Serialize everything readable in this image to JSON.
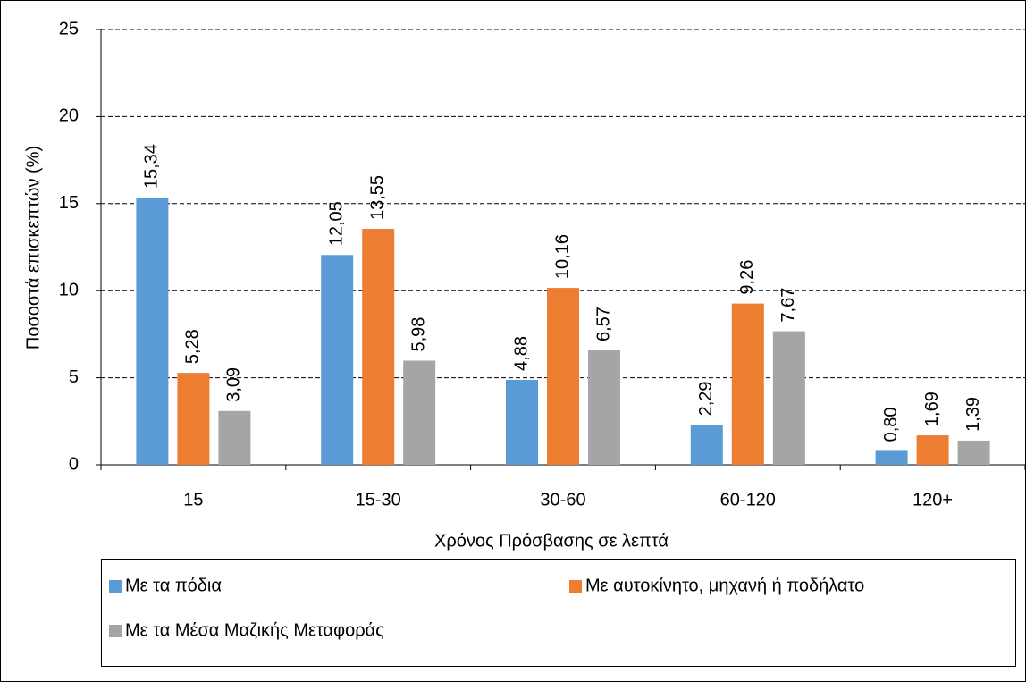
{
  "chart_data": {
    "type": "bar",
    "x_label": "Χρόνος Πρόσβασης σε λεπτά",
    "y_label": "Ποσοστά επισκεπτών (%)",
    "categories": [
      "15",
      "15-30",
      "30-60",
      "60-120",
      "120+"
    ],
    "series": [
      {
        "name": "Με τα πόδια",
        "color": "#5b9bd5",
        "values": [
          15.34,
          12.05,
          4.88,
          2.29,
          0.8
        ],
        "value_labels": [
          "15,34",
          "12,05",
          "4,88",
          "2,29",
          "0,80"
        ]
      },
      {
        "name": "Με αυτοκίνητο, μηχανή ή ποδήλατο",
        "color": "#ed7d31",
        "values": [
          5.28,
          13.55,
          10.16,
          9.26,
          1.69
        ],
        "value_labels": [
          "5,28",
          "13,55",
          "10,16",
          "9,26",
          "1,69"
        ]
      },
      {
        "name": "Με τα Μέσα Μαζικής Μεταφοράς",
        "color": "#a5a5a5",
        "values": [
          3.09,
          5.98,
          6.57,
          7.67,
          1.39
        ],
        "value_labels": [
          "3,09",
          "5,98",
          "6,57",
          "7,67",
          "1,39"
        ]
      }
    ],
    "ylim": [
      0,
      25
    ],
    "yticks": [
      0,
      5,
      10,
      15,
      20,
      25
    ],
    "grid": true,
    "legend": "bottom"
  }
}
